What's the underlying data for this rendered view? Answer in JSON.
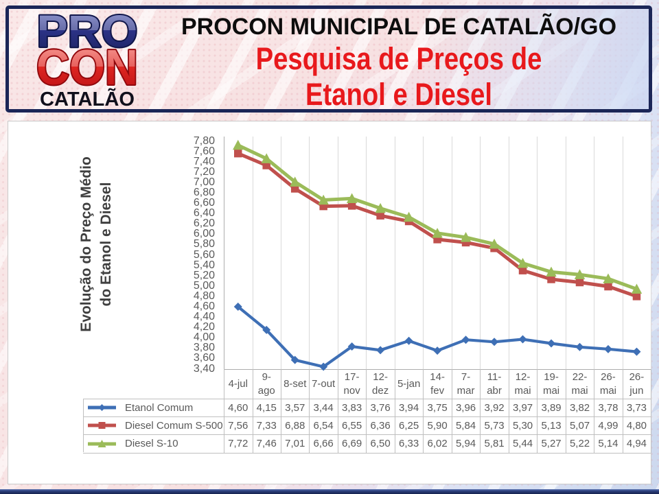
{
  "header": {
    "logo": {
      "line1": "PRO",
      "line2": "CON",
      "line3": "CATALÃO"
    },
    "title": "PROCON MUNICIPAL DE CATALÃO/GO",
    "subtitle_line1": "Pesquisa de Preços de",
    "subtitle_line2": "Etanol e Diesel"
  },
  "chart_data": {
    "type": "line",
    "title": "",
    "y_axis_title_lines": [
      "Evolução do Preço Médio",
      "do Etanol e Diesel"
    ],
    "categories": [
      "4-jul",
      "9-ago",
      "8-set",
      "7-out",
      "17-nov",
      "12-dez",
      "5-jan",
      "14-fev",
      "7-mar",
      "11-abr",
      "12-mai",
      "19-mai",
      "22-mai",
      "26-mai",
      "26-jun"
    ],
    "category_label_lines": [
      [
        "4-jul"
      ],
      [
        "9-",
        "ago"
      ],
      [
        "8-set"
      ],
      [
        "7-out"
      ],
      [
        "17-",
        "nov"
      ],
      [
        "12-",
        "dez"
      ],
      [
        "5-jan"
      ],
      [
        "14-",
        "fev"
      ],
      [
        "7-",
        "mar"
      ],
      [
        "11-",
        "abr"
      ],
      [
        "12-",
        "mai"
      ],
      [
        "19-",
        "mai"
      ],
      [
        "22-",
        "mai"
      ],
      [
        "26-",
        "mai"
      ],
      [
        "26-",
        "jun"
      ]
    ],
    "series": [
      {
        "name": "Etanol Comum",
        "marker": "diamond",
        "color": "#3e6fb5",
        "values": [
          4.6,
          4.15,
          3.57,
          3.44,
          3.83,
          3.76,
          3.94,
          3.75,
          3.96,
          3.92,
          3.97,
          3.89,
          3.82,
          3.78,
          3.73
        ]
      },
      {
        "name": "Diesel Comum S-500",
        "marker": "square",
        "color": "#c0504d",
        "values": [
          7.56,
          7.33,
          6.88,
          6.54,
          6.55,
          6.36,
          6.25,
          5.9,
          5.84,
          5.73,
          5.3,
          5.13,
          5.07,
          4.99,
          4.8
        ]
      },
      {
        "name": "Diesel S-10",
        "marker": "triangle",
        "color": "#9bbb59",
        "values": [
          7.72,
          7.46,
          7.01,
          6.66,
          6.69,
          6.5,
          6.33,
          6.02,
          5.94,
          5.81,
          5.44,
          5.27,
          5.22,
          5.14,
          4.94
        ]
      }
    ],
    "ylim": [
      3.4,
      7.8
    ],
    "ytick_step": 0.2,
    "decimal_separator": ",",
    "grid": "vertical-only",
    "legend_position": "table-left"
  },
  "colors": {
    "axis_text": "#595959",
    "grid_line": "#d9d9d9",
    "axis_line": "#adadad",
    "table_border": "#bfbfbf",
    "panel_border": "#c9c9c9",
    "banner_border": "#1b2657",
    "title_black": "#0d0d0d",
    "title_red": "#e8191c",
    "logo_blue": "#272f7d",
    "logo_red": "#d91417"
  }
}
